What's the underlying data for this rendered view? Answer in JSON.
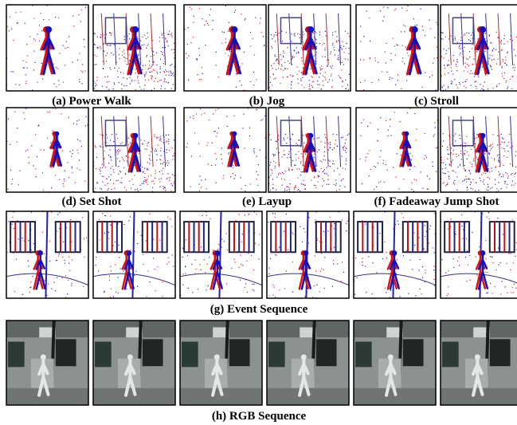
{
  "panels": [
    {
      "caption": "(a) Power Walk"
    },
    {
      "caption": "(b) Jog"
    },
    {
      "caption": "(c) Stroll"
    },
    {
      "caption": "(d) Set Shot"
    },
    {
      "caption": "(e) Layup"
    },
    {
      "caption": "(f) Fadeaway Jump Shot"
    },
    {
      "caption": "(g) Event Sequence"
    },
    {
      "caption": "(h) RGB Sequence"
    }
  ]
}
